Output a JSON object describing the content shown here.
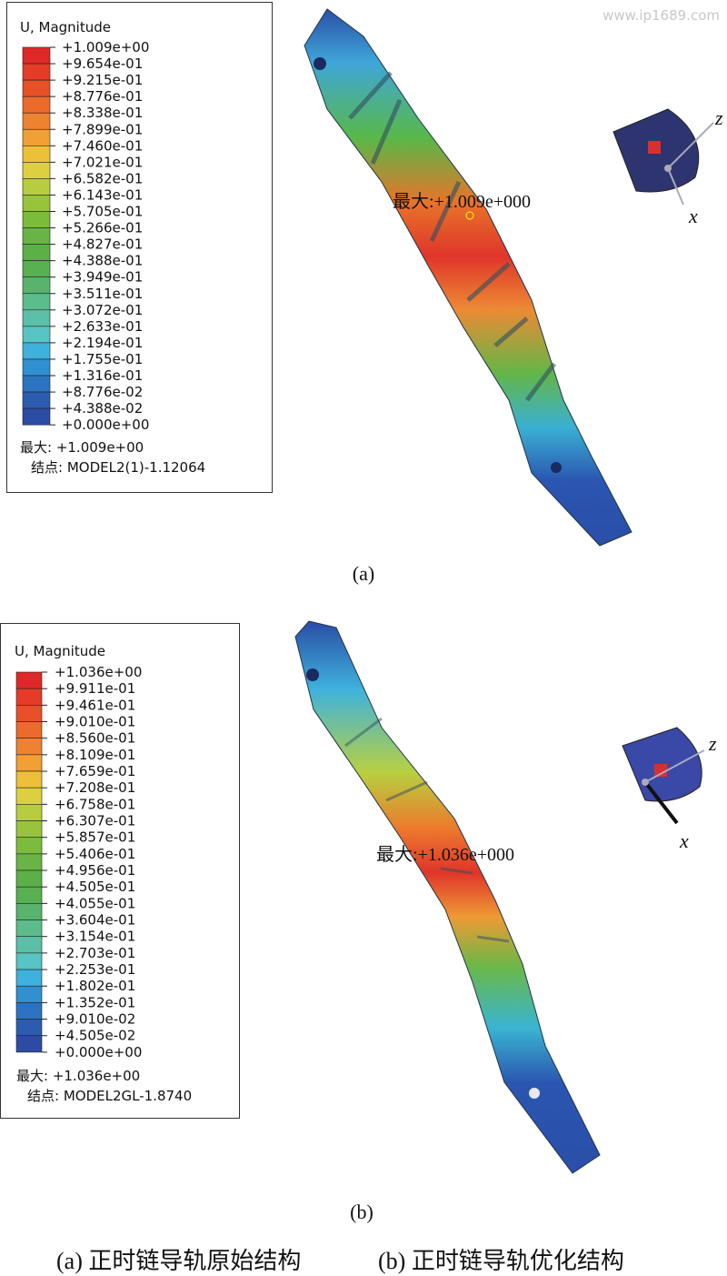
{
  "watermark": "www.ip1689.com",
  "panels": [
    {
      "legend": {
        "title": "U, Magnitude",
        "labels": [
          "+1.009e+00",
          "+9.654e-01",
          "+9.215e-01",
          "+8.776e-01",
          "+8.338e-01",
          "+7.899e-01",
          "+7.460e-01",
          "+7.021e-01",
          "+6.582e-01",
          "+6.143e-01",
          "+5.705e-01",
          "+5.266e-01",
          "+4.827e-01",
          "+4.388e-01",
          "+3.949e-01",
          "+3.511e-01",
          "+3.072e-01",
          "+2.633e-01",
          "+2.194e-01",
          "+1.755e-01",
          "+1.316e-01",
          "+8.776e-02",
          "+4.388e-02",
          "+0.000e+00"
        ]
      },
      "max": "最大: +1.009e+00",
      "node": "结点: MODEL2(1)-1.12064",
      "max_marker": "最大:+1.009e+000",
      "axes": {
        "z": "z",
        "x": "x"
      },
      "label": "(a)"
    },
    {
      "legend": {
        "title": "U, Magnitude",
        "labels": [
          "+1.036e+00",
          "+9.911e-01",
          "+9.461e-01",
          "+9.010e-01",
          "+8.560e-01",
          "+8.109e-01",
          "+7.659e-01",
          "+7.208e-01",
          "+6.758e-01",
          "+6.307e-01",
          "+5.857e-01",
          "+5.406e-01",
          "+4.956e-01",
          "+4.505e-01",
          "+4.055e-01",
          "+3.604e-01",
          "+3.154e-01",
          "+2.703e-01",
          "+2.253e-01",
          "+1.802e-01",
          "+1.352e-01",
          "+9.010e-02",
          "+4.505e-02",
          "+0.000e+00"
        ]
      },
      "max": "最大: +1.036e+00",
      "node": "结点: MODEL2GL-1.8740",
      "max_marker": "最大:+1.036e+000",
      "axes": {
        "z": "z",
        "x": "x"
      },
      "label": "(b)"
    }
  ],
  "caption": {
    "a": "(a) 正时链导轨原始结构",
    "b": "(b) 正时链导轨优化结构"
  }
}
